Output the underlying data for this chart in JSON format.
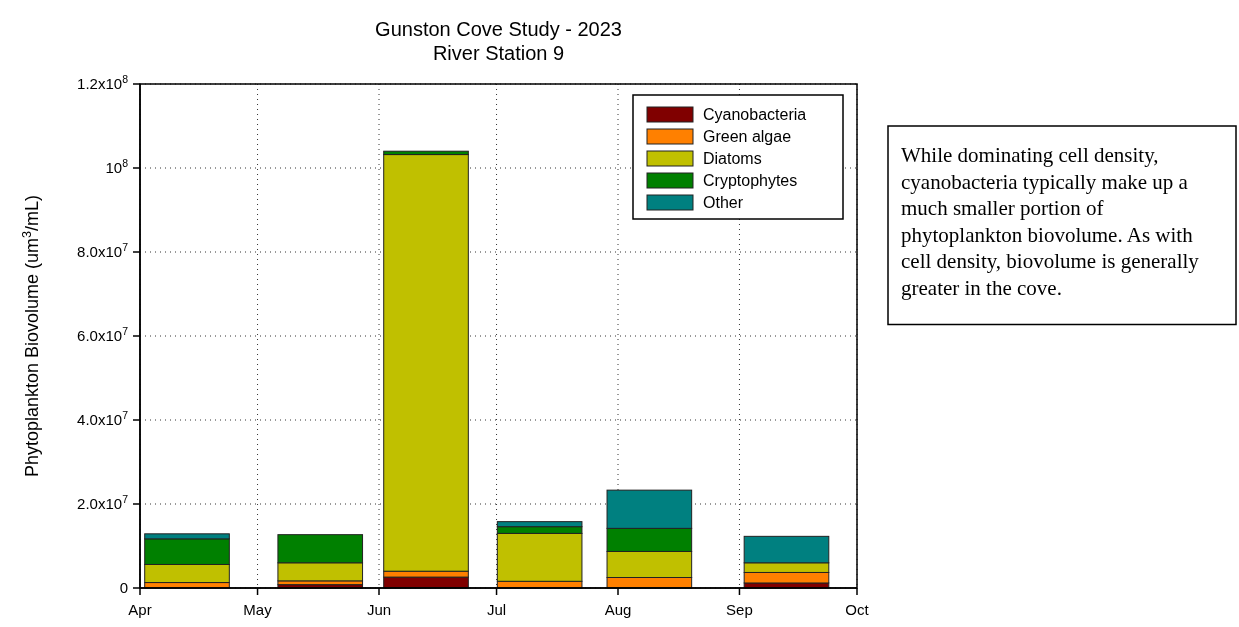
{
  "chart_data": {
    "type": "bar",
    "title": "Gunston Cove Study - 2023",
    "subtitle": "River Station 9",
    "ylabel": "Phytoplankton Biovolume (um$^{3}$/mL)",
    "x": [
      "2023-04-13",
      "2023-05-17",
      "2023-06-13",
      "2023-07-12",
      "2023-08-09",
      "2023-09-13"
    ],
    "stacked": true,
    "series": [
      {
        "name": "Cyanobacteria",
        "color": "#800000",
        "values": [
          0,
          800000,
          2600000,
          0,
          0,
          1200000
        ]
      },
      {
        "name": "Green algae",
        "color": "#ff8000",
        "values": [
          1300000,
          900000,
          1400000,
          1600000,
          2500000,
          2500000
        ]
      },
      {
        "name": "Diatoms",
        "color": "#c0c000",
        "values": [
          4300000,
          4300000,
          99200000,
          11400000,
          6200000,
          2300000
        ]
      },
      {
        "name": "Cryptophytes",
        "color": "#008000",
        "values": [
          6100000,
          6700000,
          800000,
          1600000,
          5500000,
          0
        ]
      },
      {
        "name": "Other",
        "color": "#008080",
        "values": [
          1200000,
          0,
          0,
          1200000,
          9100000,
          6300000
        ]
      }
    ],
    "xlim": [
      "2023-04-01",
      "2023-10-01"
    ],
    "xticks": [
      {
        "value": "2023-04-01",
        "label": "Apr"
      },
      {
        "value": "2023-05-01",
        "label": "May"
      },
      {
        "value": "2023-06-01",
        "label": "Jun"
      },
      {
        "value": "2023-07-01",
        "label": "Jul"
      },
      {
        "value": "2023-08-01",
        "label": "Aug"
      },
      {
        "value": "2023-09-01",
        "label": "Sep"
      },
      {
        "value": "2023-10-01",
        "label": "Oct"
      }
    ],
    "ylim": [
      0,
      120000000
    ],
    "yticks": [
      {
        "value": 0,
        "label": "0"
      },
      {
        "value": 20000000,
        "label": "2.0x10$^{7}$"
      },
      {
        "value": 40000000,
        "label": "4.0x10$^{7}$"
      },
      {
        "value": 60000000,
        "label": "6.0x10$^{7}$"
      },
      {
        "value": 80000000,
        "label": "8.0x10$^{7}$"
      },
      {
        "value": 100000000,
        "label": "10$^{8}$"
      },
      {
        "value": 120000000,
        "label": "1.2x10$^{8}$"
      }
    ],
    "grid": true,
    "legend": "top right",
    "annotations": [
      "While dominating cell density, cyanobacteria typically make up a much smaller portion of phytoplankton biovolume. As with cell density, biovolume is generally greater in the cove."
    ]
  }
}
